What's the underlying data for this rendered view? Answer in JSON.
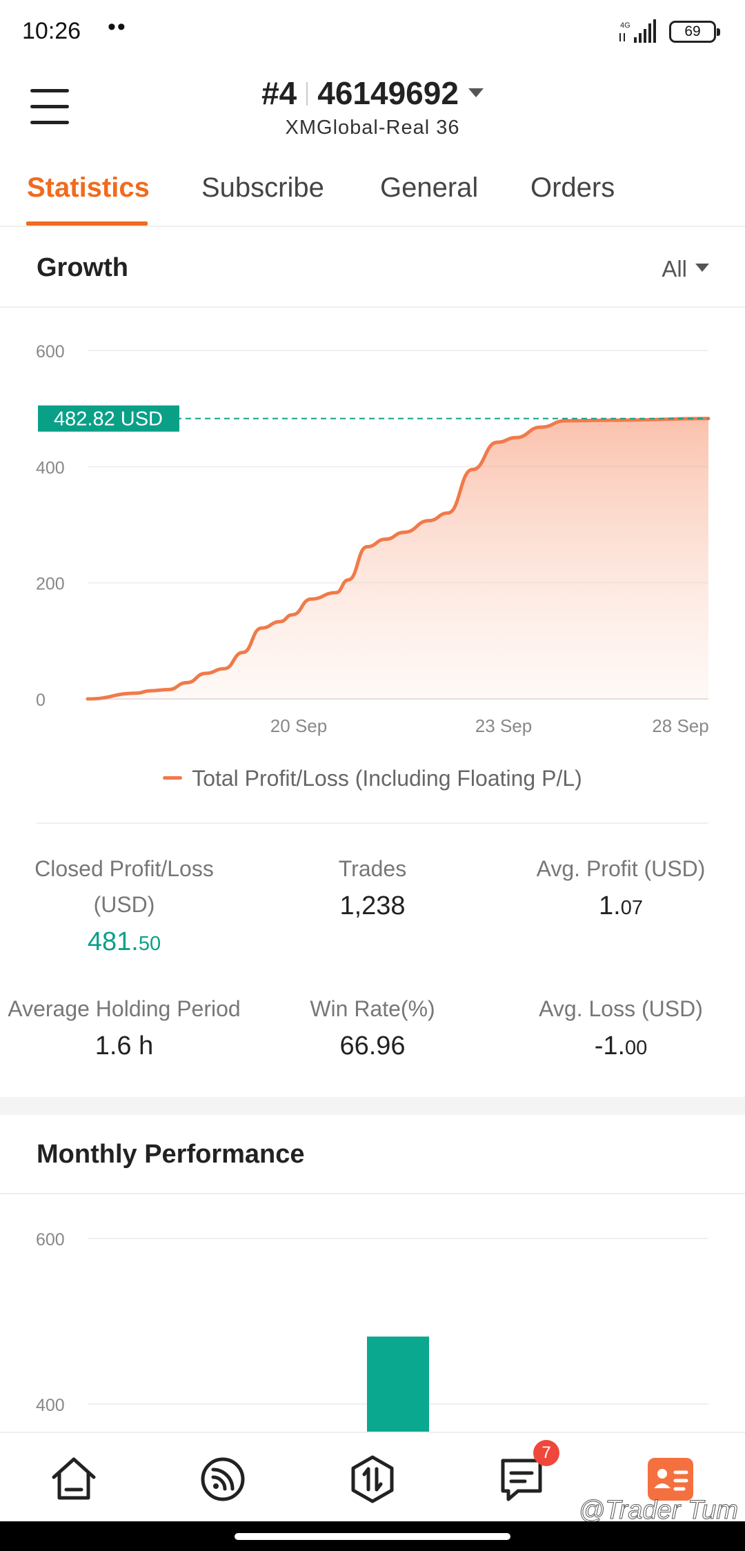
{
  "status_bar": {
    "time": "10:26",
    "dots": "••",
    "network": "4G",
    "battery": "69"
  },
  "header": {
    "account_prefix": "#4",
    "account_number": "46149692",
    "server": "XMGlobal-Real 36"
  },
  "tabs": [
    {
      "label": "Statistics",
      "active": true
    },
    {
      "label": "Subscribe"
    },
    {
      "label": "General"
    },
    {
      "label": "Orders"
    }
  ],
  "growth": {
    "title": "Growth",
    "range": "All",
    "marker_label": "482.82 USD",
    "legend": "Total Profit/Loss (Including Floating P/L)"
  },
  "stats": {
    "closed_pl": {
      "label_line1": "Closed Profit/Loss",
      "label_line2": "(USD)",
      "value_int": "481.",
      "value_dec": "50"
    },
    "trades": {
      "label": "Trades",
      "value": "1,238"
    },
    "avg_profit": {
      "label": "Avg. Profit (USD)",
      "value_int": "1.",
      "value_dec": "07"
    },
    "avg_holding": {
      "label": "Average Holding Period",
      "value": "1.6 h"
    },
    "win_rate": {
      "label": "Win Rate(%)",
      "value": "66.96"
    },
    "avg_loss": {
      "label": "Avg. Loss (USD)",
      "value_int": "-1.",
      "value_dec": "00"
    }
  },
  "monthly": {
    "title": "Monthly Performance"
  },
  "bottom_nav": {
    "items": [
      "home",
      "feed",
      "trade",
      "messages",
      "profile"
    ],
    "messages_badge": "7"
  },
  "watermark": "@Trader Tum",
  "colors": {
    "accent": "#f06b1e",
    "green": "#0aa088",
    "line": "#f07a4a"
  },
  "chart_data": [
    {
      "type": "area",
      "title": "",
      "xlabel": "",
      "ylabel": "",
      "ylim": [
        0,
        600
      ],
      "yticks": [
        0,
        200,
        400,
        600
      ],
      "x_ticks": [
        "20 Sep",
        "23 Sep",
        "28 Sep"
      ],
      "series": [
        {
          "name": "Total Profit/Loss (Including Floating P/L)",
          "points": [
            [
              0,
              0
            ],
            [
              0.08,
              10
            ],
            [
              0.1,
              14
            ],
            [
              0.13,
              16
            ],
            [
              0.16,
              28
            ],
            [
              0.19,
              44
            ],
            [
              0.22,
              52
            ],
            [
              0.25,
              80
            ],
            [
              0.28,
              122
            ],
            [
              0.31,
              133
            ],
            [
              0.33,
              145
            ],
            [
              0.36,
              172
            ],
            [
              0.4,
              183
            ],
            [
              0.42,
              205
            ],
            [
              0.45,
              262
            ],
            [
              0.48,
              275
            ],
            [
              0.51,
              287
            ],
            [
              0.55,
              307
            ],
            [
              0.58,
              320
            ],
            [
              0.62,
              395
            ],
            [
              0.66,
              442
            ],
            [
              0.69,
              450
            ],
            [
              0.73,
              468
            ],
            [
              0.77,
              479
            ],
            [
              0.85,
              480
            ],
            [
              1.0,
              482.82
            ]
          ]
        }
      ],
      "marker_value": 482.82
    },
    {
      "type": "bar",
      "title": "",
      "ylim": [
        300,
        600
      ],
      "yticks": [
        400,
        600
      ],
      "series": [
        {
          "values": [
            481.5
          ]
        }
      ]
    }
  ]
}
